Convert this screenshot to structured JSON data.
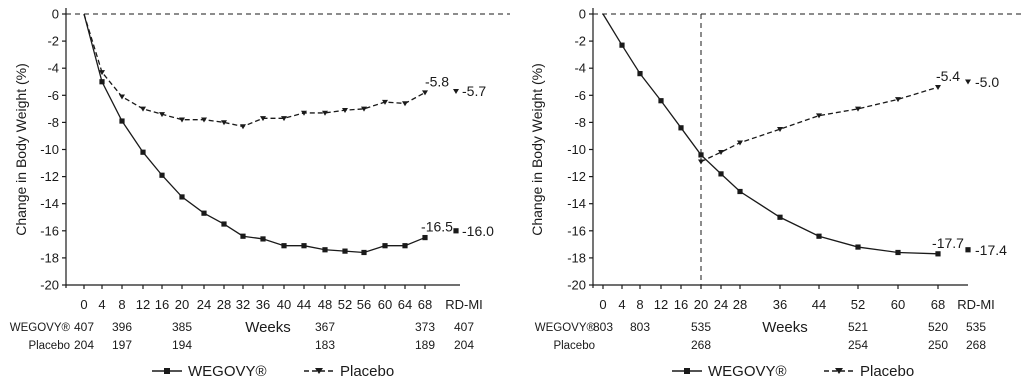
{
  "chart_data": [
    {
      "type": "line",
      "ylabel": "Change in Body Weight (%)",
      "xlabel": "Weeks",
      "ylim": [
        -20,
        0
      ],
      "yticks": [
        0,
        -2,
        -4,
        -6,
        -8,
        -10,
        -12,
        -14,
        -16,
        -18,
        -20
      ],
      "xticks": [
        "0",
        "4",
        "8",
        "12",
        "16",
        "20",
        "24",
        "28",
        "32",
        "36",
        "40",
        "44",
        "48",
        "52",
        "56",
        "60",
        "64",
        "68"
      ],
      "rdmi_label": "RD-MI",
      "series": [
        {
          "name": "WEGOVY®",
          "color": "#1a1a1a",
          "style": "solid",
          "marker": "square",
          "x": [
            0,
            4,
            8,
            12,
            16,
            20,
            24,
            28,
            32,
            36,
            40,
            44,
            48,
            52,
            56,
            60,
            64,
            68
          ],
          "y": [
            0,
            -5.0,
            -7.9,
            -10.2,
            -11.9,
            -13.5,
            -14.7,
            -15.5,
            -16.4,
            -16.6,
            -17.1,
            -17.1,
            -17.4,
            -17.5,
            -17.6,
            -17.1,
            -17.1,
            -16.5
          ],
          "end_label": "-16.5",
          "rdmi_value": -16.0,
          "rdmi_label": "-16.0"
        },
        {
          "name": "Placebo",
          "color": "#1a1a1a",
          "style": "dashed",
          "marker": "triangle-down",
          "x": [
            0,
            4,
            8,
            12,
            16,
            20,
            24,
            28,
            32,
            36,
            40,
            44,
            48,
            52,
            56,
            60,
            64,
            68
          ],
          "y": [
            0,
            -4.3,
            -6.1,
            -7.0,
            -7.4,
            -7.8,
            -7.8,
            -8.0,
            -8.3,
            -7.7,
            -7.7,
            -7.3,
            -7.3,
            -7.1,
            -7.0,
            -6.5,
            -6.6,
            -5.8
          ],
          "end_label": "-5.8",
          "rdmi_value": -5.7,
          "rdmi_label": "-5.7"
        }
      ],
      "n_at_risk": [
        {
          "label": "WEGOVY®",
          "counts": [
            {
              "week": 0,
              "n": "407"
            },
            {
              "week": 8,
              "n": "396"
            },
            {
              "week": 20,
              "n": "385"
            },
            {
              "week": 48,
              "n": "367"
            },
            {
              "week": 68,
              "n": "373"
            },
            {
              "week": "RD-MI",
              "n": "407"
            }
          ]
        },
        {
          "label": "Placebo",
          "counts": [
            {
              "week": 0,
              "n": "204"
            },
            {
              "week": 8,
              "n": "197"
            },
            {
              "week": 20,
              "n": "194"
            },
            {
              "week": 48,
              "n": "183"
            },
            {
              "week": 68,
              "n": "189"
            },
            {
              "week": "RD-MI",
              "n": "204"
            }
          ]
        }
      ]
    },
    {
      "type": "line",
      "ylabel": "Change in Body Weight (%)",
      "xlabel": "Weeks",
      "ylim": [
        -20,
        0
      ],
      "yticks": [
        0,
        -2,
        -4,
        -6,
        -8,
        -10,
        -12,
        -14,
        -16,
        -18,
        -20
      ],
      "xticks": [
        "0",
        "4",
        "8",
        "12",
        "16",
        "20",
        "24",
        "28",
        "36",
        "44",
        "52",
        "60",
        "68"
      ],
      "rdmi_label": "RD-MI",
      "vline_week": 20,
      "series": [
        {
          "name": "WEGOVY®",
          "color": "#1a1a1a",
          "style": "solid",
          "marker": "square",
          "x": [
            0,
            4,
            8,
            12,
            16,
            20,
            24,
            28,
            36,
            44,
            52,
            60,
            68
          ],
          "y": [
            0,
            -2.3,
            -4.4,
            -6.4,
            -8.4,
            -10.4,
            -11.8,
            -13.1,
            -15.0,
            -16.4,
            -17.2,
            -17.6,
            -17.7
          ],
          "end_label": "-17.7",
          "rdmi_value": -17.4,
          "rdmi_label": "-17.4"
        },
        {
          "name": "Placebo",
          "color": "#1a1a1a",
          "style": "dashed",
          "marker": "triangle-down",
          "x": [
            20,
            24,
            28,
            36,
            44,
            52,
            60,
            68
          ],
          "y": [
            -10.9,
            -10.2,
            -9.5,
            -8.5,
            -7.5,
            -7.0,
            -6.3,
            -5.4
          ],
          "end_label": "-5.4",
          "rdmi_value": -5.0,
          "rdmi_label": "-5.0"
        }
      ],
      "n_at_risk": [
        {
          "label": "WEGOVY®",
          "counts": [
            {
              "week": 0,
              "n": "803"
            },
            {
              "week": 8,
              "n": "803"
            },
            {
              "week": 20,
              "n": "535"
            },
            {
              "week": 52,
              "n": "521"
            },
            {
              "week": 68,
              "n": "520"
            },
            {
              "week": "RD-MI",
              "n": "535"
            }
          ]
        },
        {
          "label": "Placebo",
          "counts": [
            {
              "week": 20,
              "n": "268"
            },
            {
              "week": 52,
              "n": "254"
            },
            {
              "week": 68,
              "n": "250"
            },
            {
              "week": "RD-MI",
              "n": "268"
            }
          ]
        }
      ]
    }
  ],
  "legend": {
    "items": [
      {
        "label": "WEGOVY®",
        "style": "solid",
        "marker": "square"
      },
      {
        "label": "Placebo",
        "style": "dashed",
        "marker": "triangle-down"
      }
    ]
  }
}
